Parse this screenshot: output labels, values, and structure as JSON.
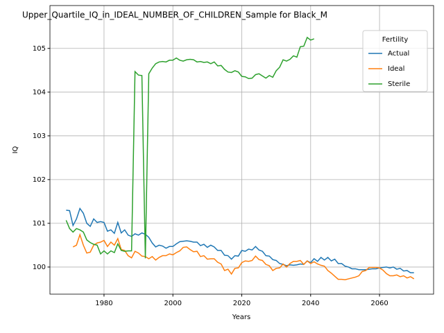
{
  "chart_data": {
    "type": "line",
    "title": "Upper_Quartile_IQ_in_IDEAL_NUMBER_OF_CHILDREN_Sample for Black_M",
    "x_label": "Years",
    "y_label": "IQ",
    "x": [
      1969,
      1970,
      1971,
      1972,
      1973,
      1974,
      1975,
      1976,
      1977,
      1978,
      1979,
      1980,
      1981,
      1982,
      1983,
      1984,
      1985,
      1986,
      1987,
      1988,
      1989,
      1990,
      1991,
      1992,
      1993,
      1994,
      1995,
      1996,
      1997,
      1998,
      1999,
      2000,
      2001,
      2002,
      2003,
      2004,
      2005,
      2006,
      2007,
      2008,
      2009,
      2010,
      2011,
      2012,
      2013,
      2014,
      2015,
      2016,
      2017,
      2018,
      2019,
      2020,
      2021,
      2022,
      2023,
      2024,
      2025,
      2026,
      2027,
      2028,
      2029,
      2030,
      2031,
      2032,
      2033,
      2034,
      2035,
      2036,
      2037,
      2038,
      2039,
      2040,
      2041,
      2042,
      2043,
      2044,
      2045,
      2046,
      2047,
      2048,
      2049,
      2050,
      2051,
      2052,
      2053,
      2054,
      2055,
      2056,
      2057,
      2058,
      2059,
      2060,
      2061,
      2062,
      2063,
      2064,
      2065,
      2066,
      2067,
      2068,
      2069,
      2070
    ],
    "series": [
      {
        "name": "Actual",
        "color": "#1f77b4",
        "values": [
          101.3,
          101.29,
          100.95,
          101.1,
          101.34,
          101.23,
          101.0,
          100.93,
          101.1,
          101.02,
          101.04,
          101.02,
          100.82,
          100.85,
          100.77,
          101.02,
          100.78,
          100.85,
          100.73,
          100.7,
          100.76,
          100.73,
          100.78,
          100.75,
          100.68,
          100.55,
          100.46,
          100.5,
          100.48,
          100.43,
          100.47,
          100.47,
          100.53,
          100.58,
          100.59,
          100.6,
          100.59,
          100.57,
          100.57,
          100.49,
          100.52,
          100.45,
          100.5,
          100.46,
          100.38,
          100.38,
          100.27,
          100.26,
          100.18,
          100.26,
          100.25,
          100.38,
          100.36,
          100.41,
          100.39,
          100.47,
          100.39,
          100.36,
          100.26,
          100.25,
          100.17,
          100.15,
          100.08,
          100.06,
          100.03,
          100.05,
          100.04,
          100.05,
          100.07,
          100.06,
          100.14,
          100.1,
          100.19,
          100.13,
          100.22,
          100.16,
          100.22,
          100.14,
          100.18,
          100.08,
          100.08,
          100.02,
          100.0,
          99.96,
          99.96,
          99.94,
          99.94,
          99.94,
          99.95,
          99.96,
          99.96,
          99.98,
          99.99,
          100.0,
          99.98,
          100.0,
          99.95,
          99.97,
          99.91,
          99.92,
          99.87,
          99.87
        ]
      },
      {
        "name": "Ideal",
        "color": "#ff7f0e",
        "values": [
          null,
          null,
          100.46,
          100.5,
          100.74,
          100.5,
          100.32,
          100.34,
          100.5,
          100.55,
          100.57,
          100.61,
          100.47,
          100.57,
          100.5,
          100.65,
          100.4,
          100.38,
          100.26,
          100.21,
          100.36,
          100.32,
          100.25,
          100.24,
          100.19,
          100.24,
          100.16,
          100.22,
          100.26,
          100.26,
          100.3,
          100.28,
          100.33,
          100.37,
          100.45,
          100.46,
          100.4,
          100.35,
          100.36,
          100.24,
          100.26,
          100.18,
          100.19,
          100.19,
          100.11,
          100.07,
          99.92,
          99.95,
          99.84,
          99.97,
          99.98,
          100.1,
          100.14,
          100.13,
          100.15,
          100.25,
          100.17,
          100.15,
          100.06,
          100.03,
          99.92,
          99.97,
          99.98,
          100.07,
          100.0,
          100.08,
          100.13,
          100.13,
          100.15,
          100.06,
          100.14,
          100.08,
          100.12,
          100.07,
          100.04,
          100.02,
          99.92,
          99.86,
          99.79,
          99.72,
          99.72,
          99.71,
          99.73,
          99.75,
          99.77,
          99.8,
          99.9,
          99.92,
          99.99,
          99.99,
          99.99,
          99.98,
          99.93,
          99.85,
          99.8,
          99.8,
          99.82,
          99.78,
          99.8,
          99.75,
          99.78,
          99.73
        ]
      },
      {
        "name": "Sterile",
        "color": "#2ca02c",
        "values": [
          101.07,
          100.88,
          100.8,
          100.88,
          100.85,
          100.8,
          100.62,
          100.56,
          100.52,
          100.5,
          100.3,
          100.37,
          100.3,
          100.37,
          100.33,
          100.53,
          100.38,
          100.36,
          100.37,
          100.37,
          104.47,
          104.39,
          104.38,
          100.2,
          104.42,
          104.55,
          104.65,
          104.69,
          104.7,
          104.69,
          104.73,
          104.73,
          104.78,
          104.73,
          104.71,
          104.74,
          104.75,
          104.74,
          104.69,
          104.7,
          104.68,
          104.69,
          104.65,
          104.69,
          104.6,
          104.61,
          104.52,
          104.46,
          104.45,
          104.49,
          104.46,
          104.36,
          104.35,
          104.31,
          104.32,
          104.4,
          104.42,
          104.37,
          104.32,
          104.38,
          104.34,
          104.49,
          104.57,
          104.74,
          104.71,
          104.75,
          104.83,
          104.8,
          105.04,
          105.05,
          105.25,
          105.19,
          105.22,
          null,
          null,
          null,
          null,
          null,
          null,
          null,
          null,
          null,
          null,
          null,
          null,
          null,
          null,
          null,
          null,
          null,
          null,
          null,
          null,
          null,
          null,
          null,
          null,
          null,
          null,
          null,
          null,
          null
        ]
      }
    ],
    "xlim": [
      1964.3,
      2075.7
    ],
    "ylim": [
      99.38,
      105.98
    ],
    "xticks": [
      1980,
      2000,
      2020,
      2040,
      2060
    ],
    "yticks": [
      100,
      101,
      102,
      103,
      104,
      105
    ],
    "grid": true,
    "legend_title": "Fertility",
    "legend_position": "upper right"
  }
}
